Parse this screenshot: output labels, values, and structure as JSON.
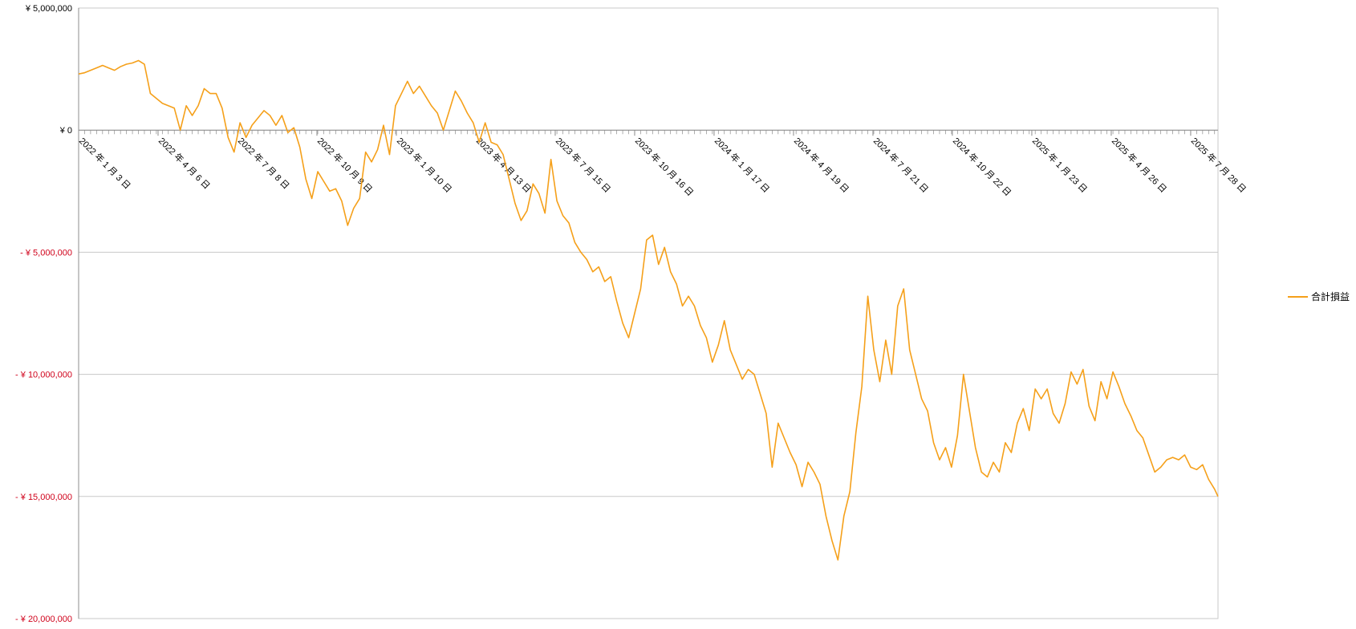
{
  "chart_data": {
    "type": "line",
    "title": "",
    "xlabel": "",
    "ylabel": "",
    "ylim": [
      -20000000,
      5000000
    ],
    "y_ticks": [
      {
        "value": 5000000,
        "label": "¥ 5,000,000"
      },
      {
        "value": 0,
        "label": "¥ 0"
      },
      {
        "value": -5000000,
        "label": "- ¥ 5,000,000"
      },
      {
        "value": -10000000,
        "label": "- ¥ 10,000,000"
      },
      {
        "value": -15000000,
        "label": "- ¥ 15,000,000"
      },
      {
        "value": -20000000,
        "label": "- ¥ 20,000,000"
      }
    ],
    "x_range": [
      "2022-01-03",
      "2025-08-29"
    ],
    "x_ticks": [
      {
        "date": "2022-01-03",
        "label": "2022 年 1 月 3 日"
      },
      {
        "date": "2022-04-06",
        "label": "2022 年 4 月 6 日"
      },
      {
        "date": "2022-07-08",
        "label": "2022 年 7 月 8 日"
      },
      {
        "date": "2022-10-09",
        "label": "2022 年 10 月 9 日"
      },
      {
        "date": "2023-01-10",
        "label": "2023 年 1 月 10 日"
      },
      {
        "date": "2023-04-13",
        "label": "2023 年 4 月 13 日"
      },
      {
        "date": "2023-07-15",
        "label": "2023 年 7 月 15 日"
      },
      {
        "date": "2023-10-16",
        "label": "2023 年 10 月 16 日"
      },
      {
        "date": "2024-01-17",
        "label": "2024 年 1 月 17 日"
      },
      {
        "date": "2024-04-19",
        "label": "2024 年 4 月 19 日"
      },
      {
        "date": "2024-07-21",
        "label": "2024 年 7 月 21 日"
      },
      {
        "date": "2024-10-22",
        "label": "2024 年 10 月 22 日"
      },
      {
        "date": "2025-01-23",
        "label": "2025 年 1 月 23 日"
      },
      {
        "date": "2025-04-26",
        "label": "2025 年 4 月 26 日"
      },
      {
        "date": "2025-07-28",
        "label": "2025 年 7 月 28 日"
      }
    ],
    "grid": true,
    "legend_position": "right",
    "colors": {
      "series": "#f5a01a",
      "negative_tick_label": "#d0021b",
      "positive_tick_label": "#000000",
      "grid": "#c8c8c8",
      "axis": "#8c8c8c"
    },
    "series": [
      {
        "name": "合計損益",
        "points": [
          [
            "2022-01-03",
            2300000
          ],
          [
            "2022-01-10",
            2350000
          ],
          [
            "2022-01-17",
            2450000
          ],
          [
            "2022-01-24",
            2550000
          ],
          [
            "2022-01-31",
            2650000
          ],
          [
            "2022-02-07",
            2550000
          ],
          [
            "2022-02-14",
            2450000
          ],
          [
            "2022-02-21",
            2600000
          ],
          [
            "2022-02-28",
            2700000
          ],
          [
            "2022-03-07",
            2750000
          ],
          [
            "2022-03-14",
            2850000
          ],
          [
            "2022-03-21",
            2700000
          ],
          [
            "2022-03-28",
            1500000
          ],
          [
            "2022-04-04",
            1300000
          ],
          [
            "2022-04-11",
            1100000
          ],
          [
            "2022-04-18",
            1000000
          ],
          [
            "2022-04-25",
            900000
          ],
          [
            "2022-05-02",
            0
          ],
          [
            "2022-05-09",
            1000000
          ],
          [
            "2022-05-16",
            600000
          ],
          [
            "2022-05-23",
            1000000
          ],
          [
            "2022-05-30",
            1700000
          ],
          [
            "2022-06-06",
            1500000
          ],
          [
            "2022-06-13",
            1500000
          ],
          [
            "2022-06-20",
            900000
          ],
          [
            "2022-06-27",
            -300000
          ],
          [
            "2022-07-04",
            -900000
          ],
          [
            "2022-07-11",
            300000
          ],
          [
            "2022-07-18",
            -300000
          ],
          [
            "2022-07-25",
            200000
          ],
          [
            "2022-08-01",
            500000
          ],
          [
            "2022-08-08",
            800000
          ],
          [
            "2022-08-15",
            600000
          ],
          [
            "2022-08-22",
            200000
          ],
          [
            "2022-08-29",
            600000
          ],
          [
            "2022-09-05",
            -100000
          ],
          [
            "2022-09-12",
            100000
          ],
          [
            "2022-09-19",
            -700000
          ],
          [
            "2022-09-26",
            -2000000
          ],
          [
            "2022-10-03",
            -2800000
          ],
          [
            "2022-10-10",
            -1700000
          ],
          [
            "2022-10-17",
            -2100000
          ],
          [
            "2022-10-24",
            -2500000
          ],
          [
            "2022-10-31",
            -2400000
          ],
          [
            "2022-11-07",
            -2900000
          ],
          [
            "2022-11-14",
            -3900000
          ],
          [
            "2022-11-21",
            -3200000
          ],
          [
            "2022-11-28",
            -2800000
          ],
          [
            "2022-12-05",
            -900000
          ],
          [
            "2022-12-12",
            -1300000
          ],
          [
            "2022-12-19",
            -800000
          ],
          [
            "2022-12-26",
            200000
          ],
          [
            "2023-01-02",
            -1000000
          ],
          [
            "2023-01-09",
            1000000
          ],
          [
            "2023-01-16",
            1500000
          ],
          [
            "2023-01-23",
            2000000
          ],
          [
            "2023-01-30",
            1500000
          ],
          [
            "2023-02-06",
            1800000
          ],
          [
            "2023-02-13",
            1400000
          ],
          [
            "2023-02-20",
            1000000
          ],
          [
            "2023-02-27",
            700000
          ],
          [
            "2023-03-06",
            0
          ],
          [
            "2023-03-13",
            800000
          ],
          [
            "2023-03-20",
            1600000
          ],
          [
            "2023-03-27",
            1200000
          ],
          [
            "2023-04-03",
            700000
          ],
          [
            "2023-04-10",
            300000
          ],
          [
            "2023-04-17",
            -500000
          ],
          [
            "2023-04-24",
            300000
          ],
          [
            "2023-05-01",
            -500000
          ],
          [
            "2023-05-08",
            -600000
          ],
          [
            "2023-05-15",
            -1000000
          ],
          [
            "2023-05-22",
            -2000000
          ],
          [
            "2023-05-29",
            -3000000
          ],
          [
            "2023-06-05",
            -3700000
          ],
          [
            "2023-06-12",
            -3300000
          ],
          [
            "2023-06-19",
            -2200000
          ],
          [
            "2023-06-26",
            -2600000
          ],
          [
            "2023-07-03",
            -3400000
          ],
          [
            "2023-07-10",
            -1200000
          ],
          [
            "2023-07-17",
            -2900000
          ],
          [
            "2023-07-24",
            -3500000
          ],
          [
            "2023-07-31",
            -3800000
          ],
          [
            "2023-08-07",
            -4600000
          ],
          [
            "2023-08-14",
            -5000000
          ],
          [
            "2023-08-21",
            -5300000
          ],
          [
            "2023-08-28",
            -5800000
          ],
          [
            "2023-09-04",
            -5600000
          ],
          [
            "2023-09-11",
            -6200000
          ],
          [
            "2023-09-18",
            -6000000
          ],
          [
            "2023-09-25",
            -7000000
          ],
          [
            "2023-10-02",
            -7900000
          ],
          [
            "2023-10-09",
            -8500000
          ],
          [
            "2023-10-16",
            -7500000
          ],
          [
            "2023-10-23",
            -6500000
          ],
          [
            "2023-10-30",
            -4500000
          ],
          [
            "2023-11-06",
            -4300000
          ],
          [
            "2023-11-13",
            -5500000
          ],
          [
            "2023-11-20",
            -4800000
          ],
          [
            "2023-11-27",
            -5800000
          ],
          [
            "2023-12-04",
            -6300000
          ],
          [
            "2023-12-11",
            -7200000
          ],
          [
            "2023-12-18",
            -6800000
          ],
          [
            "2023-12-25",
            -7200000
          ],
          [
            "2024-01-01",
            -8000000
          ],
          [
            "2024-01-08",
            -8500000
          ],
          [
            "2024-01-15",
            -9500000
          ],
          [
            "2024-01-22",
            -8800000
          ],
          [
            "2024-01-29",
            -7800000
          ],
          [
            "2024-02-05",
            -9000000
          ],
          [
            "2024-02-12",
            -9600000
          ],
          [
            "2024-02-19",
            -10200000
          ],
          [
            "2024-02-26",
            -9800000
          ],
          [
            "2024-03-04",
            -10000000
          ],
          [
            "2024-03-11",
            -10800000
          ],
          [
            "2024-03-18",
            -11600000
          ],
          [
            "2024-03-25",
            -13800000
          ],
          [
            "2024-04-01",
            -12000000
          ],
          [
            "2024-04-08",
            -12600000
          ],
          [
            "2024-04-15",
            -13200000
          ],
          [
            "2024-04-22",
            -13700000
          ],
          [
            "2024-04-29",
            -14600000
          ],
          [
            "2024-05-06",
            -13600000
          ],
          [
            "2024-05-13",
            -14000000
          ],
          [
            "2024-05-20",
            -14500000
          ],
          [
            "2024-05-27",
            -15800000
          ],
          [
            "2024-06-03",
            -16800000
          ],
          [
            "2024-06-10",
            -17600000
          ],
          [
            "2024-06-17",
            -15800000
          ],
          [
            "2024-06-24",
            -14800000
          ],
          [
            "2024-07-01",
            -12400000
          ],
          [
            "2024-07-08",
            -10500000
          ],
          [
            "2024-07-15",
            -6800000
          ],
          [
            "2024-07-22",
            -9000000
          ],
          [
            "2024-07-29",
            -10300000
          ],
          [
            "2024-08-05",
            -8600000
          ],
          [
            "2024-08-12",
            -10000000
          ],
          [
            "2024-08-19",
            -7200000
          ],
          [
            "2024-08-26",
            -6500000
          ],
          [
            "2024-09-02",
            -9000000
          ],
          [
            "2024-09-09",
            -10000000
          ],
          [
            "2024-09-16",
            -11000000
          ],
          [
            "2024-09-23",
            -11500000
          ],
          [
            "2024-09-30",
            -12800000
          ],
          [
            "2024-10-07",
            -13500000
          ],
          [
            "2024-10-14",
            -13000000
          ],
          [
            "2024-10-21",
            -13800000
          ],
          [
            "2024-10-28",
            -12500000
          ],
          [
            "2024-11-04",
            -10000000
          ],
          [
            "2024-11-11",
            -11500000
          ],
          [
            "2024-11-18",
            -13000000
          ],
          [
            "2024-11-25",
            -14000000
          ],
          [
            "2024-12-02",
            -14200000
          ],
          [
            "2024-12-09",
            -13600000
          ],
          [
            "2024-12-16",
            -14000000
          ],
          [
            "2024-12-23",
            -12800000
          ],
          [
            "2024-12-30",
            -13200000
          ],
          [
            "2025-01-06",
            -12000000
          ],
          [
            "2025-01-13",
            -11400000
          ],
          [
            "2025-01-20",
            -12300000
          ],
          [
            "2025-01-27",
            -10600000
          ],
          [
            "2025-02-03",
            -11000000
          ],
          [
            "2025-02-10",
            -10600000
          ],
          [
            "2025-02-17",
            -11600000
          ],
          [
            "2025-02-24",
            -12000000
          ],
          [
            "2025-03-03",
            -11200000
          ],
          [
            "2025-03-10",
            -9900000
          ],
          [
            "2025-03-17",
            -10400000
          ],
          [
            "2025-03-24",
            -9800000
          ],
          [
            "2025-03-31",
            -11300000
          ],
          [
            "2025-04-07",
            -11900000
          ],
          [
            "2025-04-14",
            -10300000
          ],
          [
            "2025-04-21",
            -11000000
          ],
          [
            "2025-04-28",
            -9900000
          ],
          [
            "2025-05-05",
            -10500000
          ],
          [
            "2025-05-12",
            -11200000
          ],
          [
            "2025-05-19",
            -11700000
          ],
          [
            "2025-05-26",
            -12300000
          ],
          [
            "2025-06-02",
            -12600000
          ],
          [
            "2025-06-09",
            -13300000
          ],
          [
            "2025-06-16",
            -14000000
          ],
          [
            "2025-06-23",
            -13800000
          ],
          [
            "2025-06-30",
            -13500000
          ],
          [
            "2025-07-07",
            -13400000
          ],
          [
            "2025-07-14",
            -13500000
          ],
          [
            "2025-07-21",
            -13300000
          ],
          [
            "2025-07-28",
            -13800000
          ],
          [
            "2025-08-04",
            -13900000
          ],
          [
            "2025-08-11",
            -13700000
          ],
          [
            "2025-08-18",
            -14300000
          ],
          [
            "2025-08-25",
            -14700000
          ],
          [
            "2025-08-29",
            -15000000
          ]
        ]
      }
    ]
  }
}
